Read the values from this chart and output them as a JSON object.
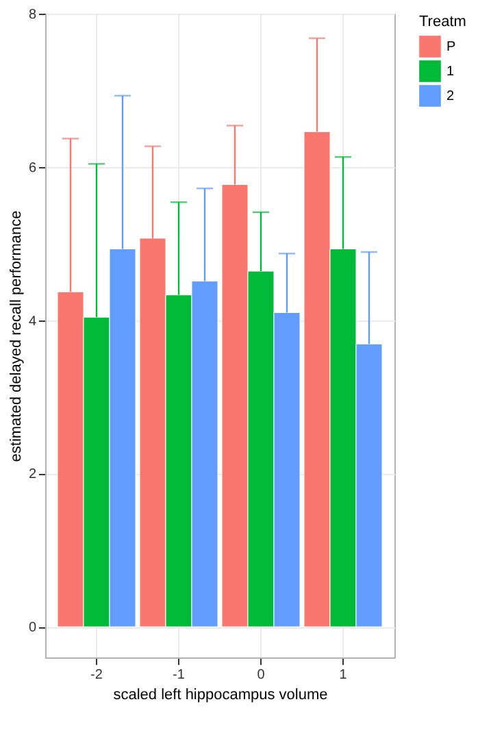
{
  "chart_data": {
    "type": "bar",
    "xlabel": "scaled left hippocampus volume",
    "ylabel": "estimated delayed recall performance",
    "legend_title": "Treatm",
    "categories": [
      "-2",
      "-1",
      "0",
      "1"
    ],
    "series": [
      {
        "name": "P",
        "color": "#f8766d",
        "values": [
          4.37,
          5.07,
          5.77,
          6.46
        ],
        "errors": [
          [
            4.37,
            6.37
          ],
          [
            5.07,
            6.27
          ],
          [
            5.77,
            6.54
          ],
          [
            6.46,
            7.68
          ]
        ]
      },
      {
        "name": "1",
        "color": "#00ba38",
        "values": [
          4.04,
          4.33,
          4.64,
          4.93
        ],
        "errors": [
          [
            4.04,
            6.04
          ],
          [
            4.33,
            5.54
          ],
          [
            4.64,
            5.41
          ],
          [
            4.93,
            6.13
          ]
        ]
      },
      {
        "name": "2",
        "color": "#619cff",
        "values": [
          4.93,
          4.51,
          4.1,
          3.69
        ],
        "errors": [
          [
            4.93,
            6.93
          ],
          [
            4.51,
            5.72
          ],
          [
            4.1,
            4.87
          ],
          [
            3.69,
            4.89
          ]
        ]
      }
    ],
    "ylim": [
      -0.4,
      8.0
    ],
    "yticks": [
      0,
      2,
      4,
      6,
      8
    ],
    "grid": true,
    "legend": "right"
  }
}
